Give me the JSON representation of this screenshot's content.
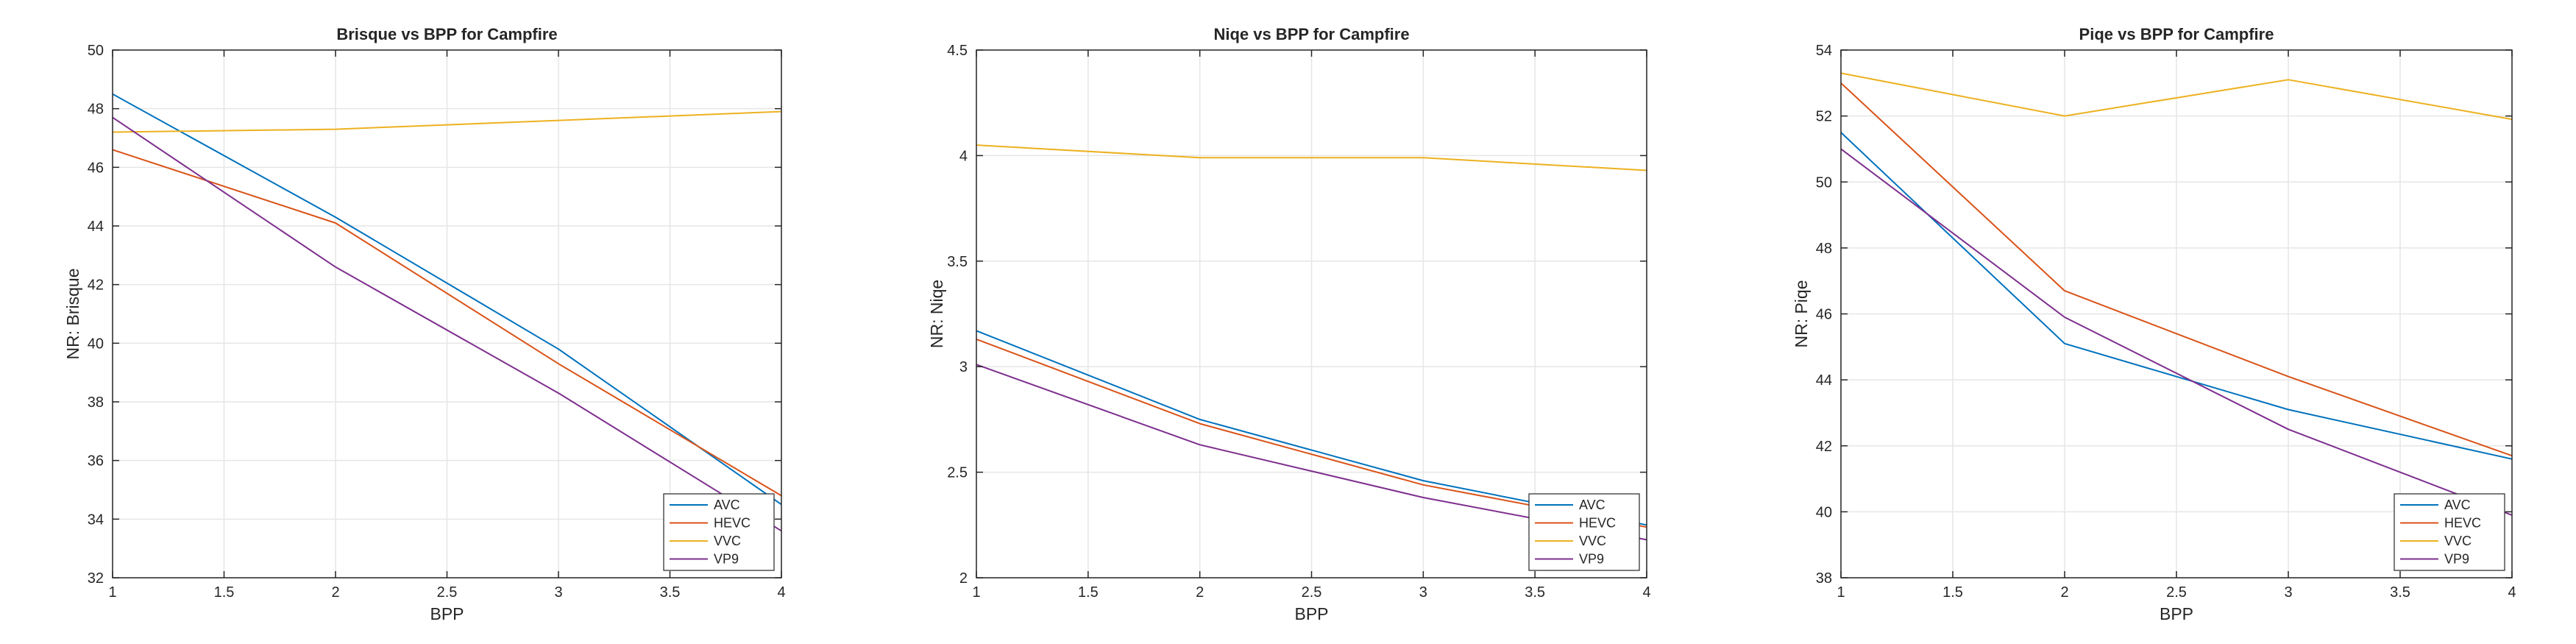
{
  "colors": {
    "AVC": "#0072BD",
    "HEVC": "#D95319",
    "VVC": "#EDB120",
    "VP9": "#7E2F8E",
    "grid": "#e6e6e6",
    "axis": "#262626"
  },
  "chart_data": [
    {
      "type": "line",
      "title": "Brisque vs BPP for Campfire",
      "xlabel": "BPP",
      "ylabel": "NR: Brisque",
      "xlim": [
        1,
        4
      ],
      "ylim": [
        32,
        50
      ],
      "xticks": [
        1,
        1.5,
        2,
        2.5,
        3,
        3.5,
        4
      ],
      "xtick_labels": [
        "1",
        "1.5",
        "2",
        "2.5",
        "3",
        "3.5",
        "4"
      ],
      "yticks": [
        32,
        34,
        36,
        38,
        40,
        42,
        44,
        46,
        48,
        50
      ],
      "ytick_labels": [
        "32",
        "34",
        "36",
        "38",
        "40",
        "42",
        "44",
        "46",
        "48",
        "50"
      ],
      "grid": true,
      "legend_position": "bottom-right",
      "x": [
        1,
        2,
        3,
        4
      ],
      "series": [
        {
          "name": "AVC",
          "values": [
            48.5,
            44.3,
            39.8,
            34.5
          ]
        },
        {
          "name": "HEVC",
          "values": [
            46.6,
            44.1,
            39.3,
            34.8
          ]
        },
        {
          "name": "VVC",
          "values": [
            47.2,
            47.3,
            47.6,
            47.9
          ]
        },
        {
          "name": "VP9",
          "values": [
            47.7,
            42.6,
            38.3,
            33.6
          ]
        }
      ]
    },
    {
      "type": "line",
      "title": "Niqe vs BPP for Campfire",
      "xlabel": "BPP",
      "ylabel": "NR: Niqe",
      "xlim": [
        1,
        4
      ],
      "ylim": [
        2,
        4.5
      ],
      "xticks": [
        1,
        1.5,
        2,
        2.5,
        3,
        3.5,
        4
      ],
      "xtick_labels": [
        "1",
        "1.5",
        "2",
        "2.5",
        "3",
        "3.5",
        "4"
      ],
      "yticks": [
        2,
        2.5,
        3,
        3.5,
        4,
        4.5
      ],
      "ytick_labels": [
        "2",
        "2.5",
        "3",
        "3.5",
        "4",
        "4.5"
      ],
      "grid": true,
      "legend_position": "bottom-right",
      "x": [
        1,
        2,
        3,
        4
      ],
      "series": [
        {
          "name": "AVC",
          "values": [
            3.17,
            2.75,
            2.46,
            2.25
          ]
        },
        {
          "name": "HEVC",
          "values": [
            3.13,
            2.73,
            2.44,
            2.24
          ]
        },
        {
          "name": "VVC",
          "values": [
            4.05,
            3.99,
            3.99,
            3.93
          ]
        },
        {
          "name": "VP9",
          "values": [
            3.01,
            2.63,
            2.38,
            2.18
          ]
        }
      ]
    },
    {
      "type": "line",
      "title": "Piqe vs BPP for Campfire",
      "xlabel": "BPP",
      "ylabel": "NR: Piqe",
      "xlim": [
        1,
        4
      ],
      "ylim": [
        38,
        54
      ],
      "xticks": [
        1,
        1.5,
        2,
        2.5,
        3,
        3.5,
        4
      ],
      "xtick_labels": [
        "1",
        "1.5",
        "2",
        "2.5",
        "3",
        "3.5",
        "4"
      ],
      "yticks": [
        38,
        40,
        42,
        44,
        46,
        48,
        50,
        52,
        54
      ],
      "ytick_labels": [
        "38",
        "40",
        "42",
        "44",
        "46",
        "48",
        "50",
        "52",
        "54"
      ],
      "grid": true,
      "legend_position": "bottom-right",
      "x": [
        1,
        2,
        3,
        4
      ],
      "series": [
        {
          "name": "AVC",
          "values": [
            51.5,
            45.1,
            43.1,
            41.6
          ]
        },
        {
          "name": "HEVC",
          "values": [
            53.0,
            46.7,
            44.1,
            41.7
          ]
        },
        {
          "name": "VVC",
          "values": [
            53.3,
            52.0,
            53.1,
            51.9
          ]
        },
        {
          "name": "VP9",
          "values": [
            51.0,
            45.9,
            42.5,
            39.9
          ]
        }
      ]
    }
  ]
}
